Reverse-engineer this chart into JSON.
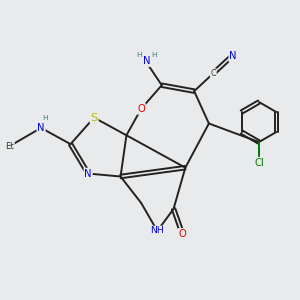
{
  "bg_color": "#e8eaeb",
  "bond_color": "#222222",
  "bond_width": 1.4,
  "dbo": 0.06,
  "atom_colors": {
    "N": "#0000dd",
    "O": "#dd0000",
    "S": "#bbbb00",
    "Cl": "#007700",
    "H": "#3a7a7a",
    "C": "#333333"
  },
  "fs": 7.2
}
